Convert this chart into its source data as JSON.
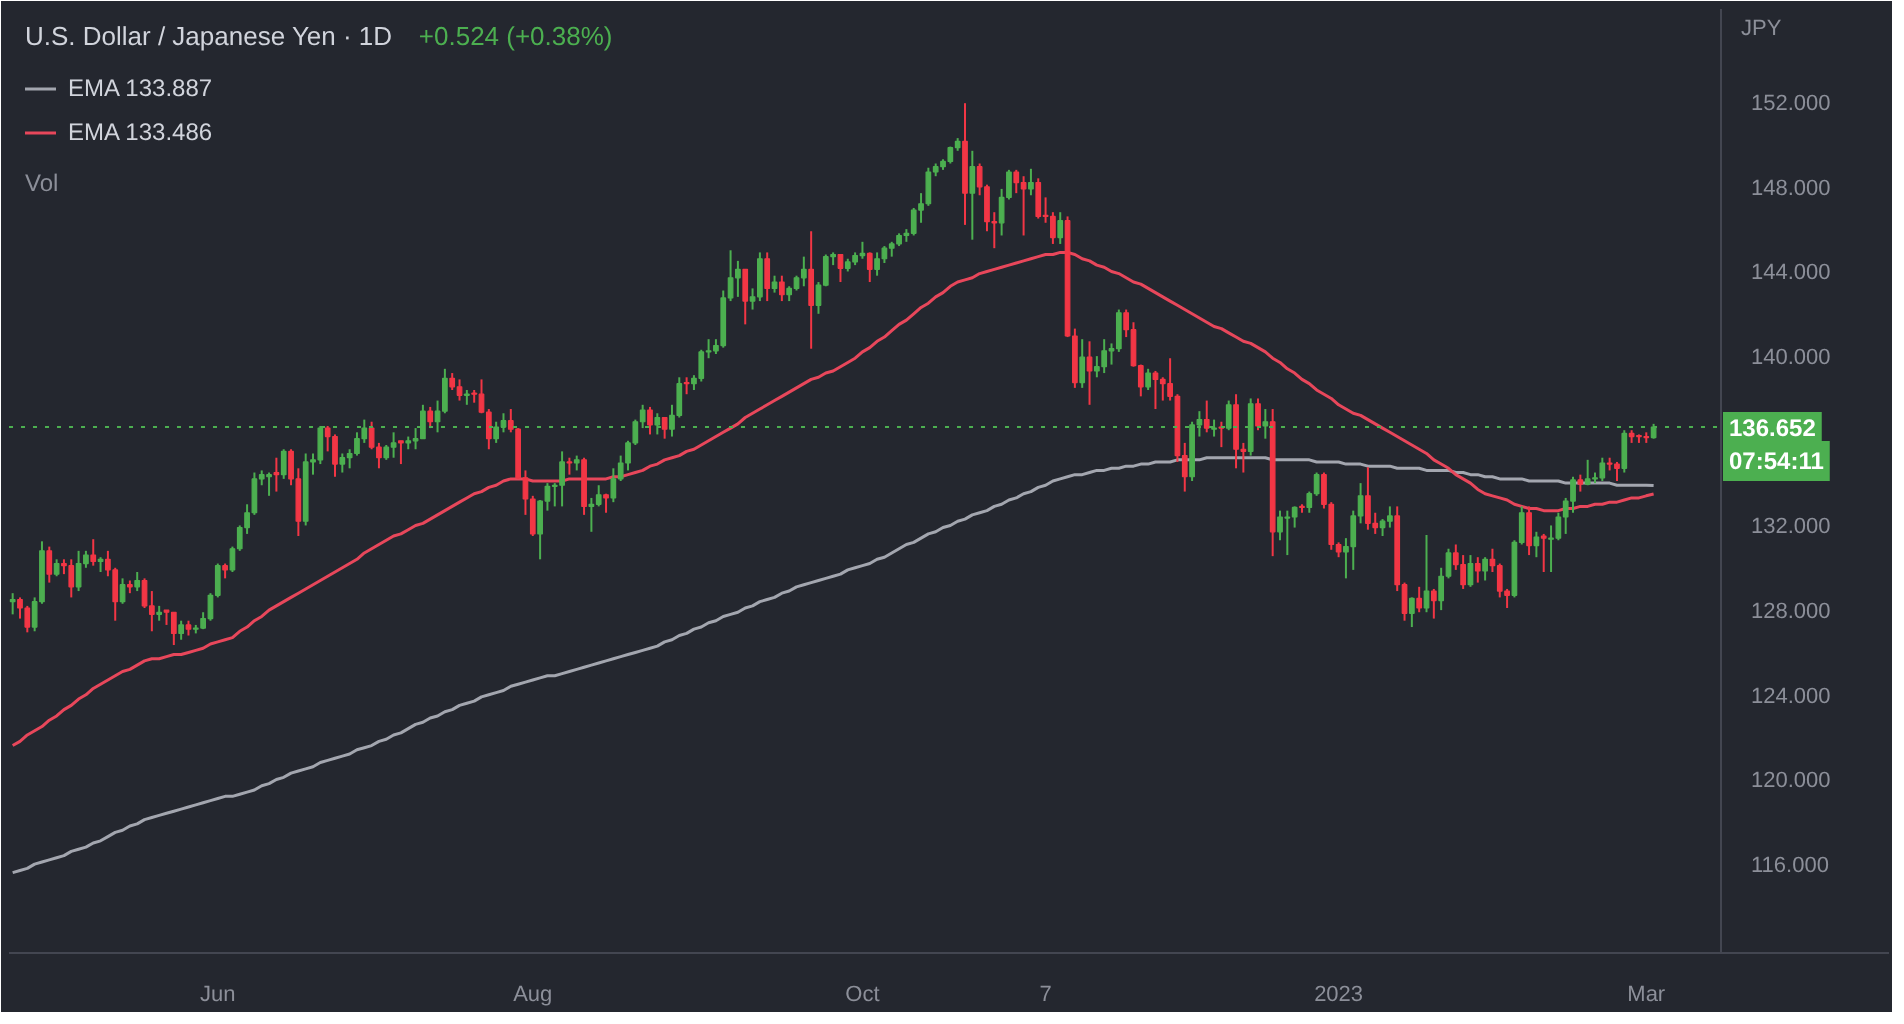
{
  "chart_data": {
    "type": "candlestick",
    "title": "U.S. Dollar / Japanese Yen · 1D",
    "ylabel": "JPY",
    "annotations": [
      "+0.524 (+0.38%)",
      "Vol",
      "07:54:11"
    ],
    "legend": "top left",
    "categories": [
      null,
      null,
      null,
      null,
      null,
      null,
      null,
      null,
      null,
      null,
      null,
      null,
      null,
      null,
      null,
      null,
      null,
      null,
      null,
      null,
      null,
      null,
      null,
      null,
      null,
      null,
      null,
      null,
      "Jun",
      null,
      null,
      null,
      null,
      null,
      null,
      null,
      null,
      null,
      null,
      null,
      null,
      null,
      null,
      null,
      null,
      null,
      null,
      null,
      null,
      null,
      null,
      null,
      null,
      null,
      null,
      null,
      null,
      null,
      null,
      null,
      null,
      null,
      null,
      null,
      null,
      null,
      null,
      null,
      null,
      null,
      null,
      "Aug",
      null,
      null,
      null,
      null,
      null,
      null,
      null,
      null,
      null,
      null,
      null,
      null,
      null,
      null,
      null,
      null,
      null,
      null,
      null,
      null,
      null,
      null,
      null,
      null,
      null,
      null,
      null,
      null,
      null,
      null,
      null,
      null,
      null,
      null,
      null,
      null,
      null,
      null,
      null,
      null,
      null,
      null,
      null,
      null,
      "Oct",
      null,
      null,
      null,
      null,
      null,
      null,
      null,
      null,
      null,
      null,
      null,
      null,
      null,
      null,
      null,
      null,
      null,
      null,
      null,
      null,
      null,
      null,
      null,
      null,
      "7",
      null,
      null,
      null,
      null,
      null,
      null,
      null,
      null,
      null,
      null,
      null,
      null,
      null,
      null,
      null,
      null,
      null,
      null,
      null,
      null,
      null,
      null,
      null,
      null,
      null,
      null,
      null,
      null,
      null,
      null,
      null,
      null,
      null,
      null,
      null,
      null,
      null,
      null,
      null,
      "2023",
      null,
      null,
      null,
      null,
      null,
      null,
      null,
      null,
      null,
      null,
      null,
      null,
      null,
      null,
      null,
      null,
      null,
      null,
      null,
      null,
      null,
      null,
      null,
      null,
      null,
      null,
      null,
      null,
      null,
      null,
      null,
      null,
      null,
      null,
      null,
      null,
      null,
      null,
      null,
      null,
      null,
      "Mar",
      null
    ],
    "ylim": [
      111.8,
      156.4
    ],
    "yticks": [
      {
        "value": 116,
        "label": "116.000"
      },
      {
        "value": 120,
        "label": "120.000"
      },
      {
        "value": 124,
        "label": "124.000"
      },
      {
        "value": 128,
        "label": "128.000"
      },
      {
        "value": 132,
        "label": "132.000"
      },
      {
        "value": 140,
        "label": "140.000"
      },
      {
        "value": 144,
        "label": "144.000"
      },
      {
        "value": 148,
        "label": "148.000"
      },
      {
        "value": 152,
        "label": "152.000"
      }
    ],
    "ref_lines": [
      {
        "axis": "y",
        "value": 136.652,
        "label": "136.652",
        "color": "#4caf50",
        "line_style": "dotted"
      }
    ],
    "ohlc": [
      [
        128.4,
        128.8,
        127.8,
        128.5
      ],
      [
        128.5,
        128.6,
        127.6,
        128.1
      ],
      [
        128.1,
        128.2,
        126.95,
        127.2
      ],
      [
        127.2,
        128.6,
        127.0,
        128.4
      ],
      [
        128.4,
        131.25,
        128.3,
        130.8
      ],
      [
        130.8,
        131.0,
        129.3,
        129.7
      ],
      [
        129.7,
        130.4,
        129.6,
        130.2
      ],
      [
        130.2,
        130.4,
        129.7,
        130.1
      ],
      [
        130.1,
        130.4,
        128.6,
        129.1
      ],
      [
        129.1,
        130.8,
        128.9,
        130.2
      ],
      [
        130.2,
        130.8,
        130.0,
        130.6
      ],
      [
        130.6,
        131.35,
        130.1,
        130.3
      ],
      [
        130.3,
        130.5,
        129.8,
        130.4
      ],
      [
        130.4,
        130.8,
        129.6,
        129.9
      ],
      [
        129.9,
        130.0,
        127.5,
        128.4
      ],
      [
        128.4,
        129.5,
        128.3,
        129.2
      ],
      [
        129.2,
        129.4,
        128.8,
        129.1
      ],
      [
        129.1,
        129.8,
        128.9,
        129.4
      ],
      [
        129.4,
        129.5,
        128.1,
        128.2
      ],
      [
        128.2,
        128.9,
        127.0,
        127.8
      ],
      [
        127.8,
        128.2,
        127.5,
        127.9
      ],
      [
        128.0,
        128.0,
        127.3,
        127.9
      ],
      [
        127.9,
        127.9,
        126.35,
        126.9
      ],
      [
        126.9,
        127.5,
        126.6,
        127.3
      ],
      [
        127.3,
        127.5,
        126.8,
        127.1
      ],
      [
        127.1,
        127.3,
        126.9,
        127.15
      ],
      [
        127.15,
        127.9,
        127.1,
        127.6
      ],
      [
        127.6,
        128.8,
        127.5,
        128.7
      ],
      [
        128.7,
        130.2,
        128.6,
        130.1
      ],
      [
        130.1,
        130.2,
        129.5,
        129.9
      ],
      [
        129.9,
        131.0,
        129.8,
        130.9
      ],
      [
        130.9,
        132.0,
        130.8,
        131.9
      ],
      [
        131.9,
        133.0,
        131.6,
        132.6
      ],
      [
        132.6,
        134.5,
        132.5,
        134.2
      ],
      [
        134.2,
        134.6,
        133.9,
        134.4
      ],
      [
        134.3,
        134.5,
        133.4,
        134.4
      ],
      [
        134.5,
        135.2,
        133.6,
        134.4
      ],
      [
        134.4,
        135.6,
        134.2,
        135.5
      ],
      [
        135.5,
        135.6,
        133.9,
        134.2
      ],
      [
        134.2,
        134.7,
        131.5,
        132.2
      ],
      [
        132.2,
        135.4,
        132.0,
        135.0
      ],
      [
        135.0,
        135.4,
        134.4,
        135.1
      ],
      [
        135.1,
        136.7,
        134.9,
        136.6
      ],
      [
        136.6,
        136.7,
        135.5,
        136.2
      ],
      [
        136.2,
        136.3,
        134.3,
        134.9
      ],
      [
        134.9,
        135.4,
        134.5,
        135.2
      ],
      [
        135.2,
        135.6,
        134.7,
        135.4
      ],
      [
        135.4,
        136.4,
        135.3,
        136.1
      ],
      [
        136.1,
        137.0,
        135.9,
        136.6
      ],
      [
        136.6,
        136.9,
        135.6,
        135.7
      ],
      [
        135.7,
        135.9,
        134.7,
        135.2
      ],
      [
        135.2,
        135.8,
        135.1,
        135.7
      ],
      [
        135.7,
        136.4,
        135.2,
        135.9
      ],
      [
        136.0,
        136.0,
        134.9,
        135.9
      ],
      [
        135.9,
        136.2,
        135.6,
        136.0
      ],
      [
        136.0,
        136.6,
        135.6,
        136.1
      ],
      [
        136.1,
        137.7,
        136.1,
        137.4
      ],
      [
        137.4,
        137.6,
        136.6,
        136.9
      ],
      [
        136.9,
        137.9,
        136.4,
        137.4
      ],
      [
        137.4,
        139.4,
        137.3,
        138.95
      ],
      [
        138.95,
        139.2,
        138.4,
        138.55
      ],
      [
        138.55,
        138.9,
        137.9,
        138.15
      ],
      [
        138.15,
        138.4,
        137.7,
        138.2
      ],
      [
        138.25,
        138.4,
        137.8,
        138.2
      ],
      [
        138.2,
        138.9,
        137.3,
        137.35
      ],
      [
        137.35,
        137.5,
        135.6,
        136.1
      ],
      [
        136.1,
        136.9,
        135.9,
        136.65
      ],
      [
        136.65,
        137.3,
        136.4,
        136.95
      ],
      [
        136.95,
        137.5,
        136.4,
        136.55
      ],
      [
        136.55,
        136.6,
        134.2,
        134.25
      ],
      [
        134.25,
        134.6,
        132.5,
        133.25
      ],
      [
        133.25,
        133.4,
        131.5,
        131.6
      ],
      [
        131.6,
        133.2,
        130.4,
        133.15
      ],
      [
        133.15,
        134.0,
        132.7,
        133.85
      ],
      [
        133.85,
        134.0,
        132.9,
        133.9
      ],
      [
        133.9,
        135.5,
        132.9,
        135.0
      ],
      [
        135.0,
        135.2,
        134.4,
        134.95
      ],
      [
        134.95,
        135.3,
        134.6,
        135.1
      ],
      [
        135.1,
        135.2,
        132.5,
        132.9
      ],
      [
        132.9,
        133.3,
        131.7,
        133.0
      ],
      [
        133.0,
        133.9,
        132.9,
        133.45
      ],
      [
        133.45,
        133.5,
        132.6,
        133.3
      ],
      [
        133.3,
        134.7,
        133.1,
        134.2
      ],
      [
        134.2,
        135.3,
        134.1,
        134.95
      ],
      [
        134.95,
        136.0,
        134.6,
        135.9
      ],
      [
        135.9,
        137.0,
        135.8,
        136.9
      ],
      [
        136.9,
        137.7,
        136.6,
        137.45
      ],
      [
        137.45,
        137.6,
        136.3,
        136.75
      ],
      [
        136.75,
        137.3,
        136.3,
        137.1
      ],
      [
        137.1,
        137.1,
        136.1,
        136.55
      ],
      [
        136.55,
        137.7,
        136.2,
        137.2
      ],
      [
        137.2,
        139.0,
        137.1,
        138.7
      ],
      [
        138.75,
        139.0,
        138.2,
        138.7
      ],
      [
        138.7,
        139.1,
        138.4,
        138.95
      ],
      [
        138.95,
        140.3,
        138.8,
        140.2
      ],
      [
        140.2,
        140.8,
        139.9,
        140.25
      ],
      [
        140.25,
        140.8,
        140.1,
        140.5
      ],
      [
        140.5,
        143.1,
        140.4,
        142.75
      ],
      [
        142.75,
        145.0,
        142.6,
        143.7
      ],
      [
        143.7,
        144.5,
        142.8,
        144.1
      ],
      [
        144.1,
        144.1,
        141.5,
        142.6
      ],
      [
        142.6,
        143.2,
        142.2,
        142.8
      ],
      [
        142.8,
        144.9,
        142.6,
        144.6
      ],
      [
        144.6,
        144.9,
        142.6,
        143.2
      ],
      [
        143.2,
        143.8,
        143.0,
        143.5
      ],
      [
        143.5,
        143.8,
        142.6,
        142.9
      ],
      [
        142.9,
        143.3,
        142.6,
        143.2
      ],
      [
        143.2,
        143.8,
        143.1,
        143.7
      ],
      [
        143.7,
        144.7,
        143.3,
        144.1
      ],
      [
        144.1,
        145.9,
        140.35,
        142.4
      ],
      [
        142.4,
        143.5,
        142.0,
        143.35
      ],
      [
        143.35,
        144.8,
        143.3,
        144.7
      ],
      [
        144.7,
        144.9,
        144.3,
        144.8
      ],
      [
        144.8,
        144.8,
        143.5,
        144.15
      ],
      [
        144.15,
        144.6,
        144.0,
        144.45
      ],
      [
        144.45,
        144.9,
        144.3,
        144.75
      ],
      [
        144.75,
        145.4,
        144.6,
        144.85
      ],
      [
        144.85,
        144.9,
        143.5,
        144.1
      ],
      [
        144.1,
        144.9,
        143.8,
        144.6
      ],
      [
        144.6,
        145.2,
        144.4,
        145.1
      ],
      [
        145.1,
        145.4,
        144.7,
        145.3
      ],
      [
        145.3,
        145.8,
        145.2,
        145.7
      ],
      [
        145.7,
        146.0,
        145.4,
        145.8
      ],
      [
        145.8,
        147.0,
        145.7,
        146.9
      ],
      [
        146.9,
        147.7,
        146.3,
        147.2
      ],
      [
        147.2,
        148.9,
        147.1,
        148.7
      ],
      [
        148.7,
        149.1,
        148.5,
        148.95
      ],
      [
        148.95,
        149.3,
        148.8,
        149.2
      ],
      [
        149.2,
        149.9,
        149.1,
        149.85
      ],
      [
        149.85,
        150.3,
        149.7,
        150.15
      ],
      [
        150.15,
        151.95,
        146.2,
        147.7
      ],
      [
        147.7,
        149.7,
        145.5,
        148.95
      ],
      [
        148.95,
        149.1,
        147.6,
        148.0
      ],
      [
        148.0,
        148.1,
        145.9,
        146.35
      ],
      [
        146.35,
        146.8,
        145.1,
        146.3
      ],
      [
        146.3,
        147.9,
        145.7,
        147.5
      ],
      [
        147.5,
        148.8,
        147.4,
        148.7
      ],
      [
        148.7,
        148.8,
        147.7,
        148.2
      ],
      [
        148.2,
        148.5,
        145.7,
        147.9
      ],
      [
        147.9,
        148.85,
        147.6,
        148.2
      ],
      [
        148.2,
        148.4,
        146.5,
        146.6
      ],
      [
        146.65,
        147.5,
        146.3,
        146.6
      ],
      [
        146.6,
        146.8,
        145.3,
        145.6
      ],
      [
        145.6,
        146.8,
        145.3,
        146.4
      ],
      [
        146.4,
        146.6,
        140.9,
        140.95
      ],
      [
        140.95,
        141.3,
        138.5,
        138.75
      ],
      [
        138.75,
        140.8,
        138.5,
        139.95
      ],
      [
        139.95,
        140.7,
        137.7,
        139.3
      ],
      [
        139.3,
        140.0,
        139.0,
        139.5
      ],
      [
        139.5,
        140.8,
        139.2,
        140.25
      ],
      [
        140.25,
        140.6,
        139.6,
        140.35
      ],
      [
        140.35,
        142.2,
        140.2,
        142.05
      ],
      [
        142.05,
        142.2,
        140.9,
        141.25
      ],
      [
        141.25,
        141.6,
        139.5,
        139.55
      ],
      [
        139.55,
        139.6,
        138.1,
        138.55
      ],
      [
        138.55,
        139.4,
        138.4,
        139.2
      ],
      [
        139.2,
        139.3,
        137.5,
        138.9
      ],
      [
        138.9,
        139.0,
        137.9,
        138.7
      ],
      [
        138.7,
        139.9,
        137.9,
        138.1
      ],
      [
        138.1,
        138.2,
        135.0,
        135.3
      ],
      [
        135.3,
        135.9,
        133.6,
        134.3
      ],
      [
        134.3,
        136.9,
        134.1,
        136.75
      ],
      [
        136.75,
        137.4,
        136.2,
        137.0
      ],
      [
        137.0,
        137.9,
        136.4,
        136.6
      ],
      [
        136.55,
        137.0,
        136.2,
        136.6
      ],
      [
        136.65,
        136.9,
        135.7,
        136.6
      ],
      [
        136.6,
        137.9,
        136.5,
        137.7
      ],
      [
        137.7,
        138.2,
        134.7,
        135.6
      ],
      [
        135.6,
        135.9,
        134.5,
        135.5
      ],
      [
        135.5,
        138.0,
        135.3,
        137.75
      ],
      [
        137.75,
        138.0,
        136.5,
        136.7
      ],
      [
        136.7,
        137.5,
        136.1,
        136.9
      ],
      [
        136.9,
        137.5,
        130.55,
        131.7
      ],
      [
        131.7,
        132.7,
        131.3,
        132.4
      ],
      [
        132.35,
        132.7,
        130.6,
        132.4
      ],
      [
        132.4,
        132.9,
        131.9,
        132.85
      ],
      [
        132.9,
        133.0,
        132.6,
        132.85
      ],
      [
        132.85,
        133.6,
        132.6,
        133.5
      ],
      [
        133.5,
        134.5,
        133.4,
        134.4
      ],
      [
        134.4,
        134.5,
        132.8,
        133.0
      ],
      [
        133.0,
        133.1,
        130.85,
        131.1
      ],
      [
        131.1,
        131.2,
        130.5,
        130.75
      ],
      [
        130.75,
        131.4,
        129.5,
        131.0
      ],
      [
        131.0,
        132.7,
        129.9,
        132.45
      ],
      [
        132.45,
        134.0,
        132.1,
        133.4
      ],
      [
        133.4,
        134.75,
        131.8,
        132.1
      ],
      [
        132.1,
        132.6,
        131.6,
        131.9
      ],
      [
        131.9,
        132.3,
        131.5,
        132.2
      ],
      [
        132.2,
        132.9,
        131.9,
        132.45
      ],
      [
        132.45,
        132.9,
        128.9,
        129.2
      ],
      [
        129.2,
        129.3,
        127.5,
        127.85
      ],
      [
        127.85,
        128.6,
        127.2,
        128.55
      ],
      [
        128.55,
        129.1,
        127.9,
        128.1
      ],
      [
        128.1,
        131.55,
        127.9,
        128.9
      ],
      [
        128.9,
        129.0,
        127.6,
        128.45
      ],
      [
        128.45,
        130.0,
        128.0,
        129.6
      ],
      [
        129.6,
        130.9,
        129.5,
        130.7
      ],
      [
        130.7,
        131.1,
        129.9,
        130.15
      ],
      [
        130.15,
        130.6,
        129.0,
        129.2
      ],
      [
        129.2,
        130.6,
        129.1,
        130.2
      ],
      [
        130.2,
        130.5,
        129.3,
        129.85
      ],
      [
        129.85,
        130.5,
        129.4,
        130.4
      ],
      [
        130.4,
        130.9,
        129.8,
        130.1
      ],
      [
        130.1,
        130.2,
        128.6,
        128.9
      ],
      [
        128.9,
        129.0,
        128.1,
        128.7
      ],
      [
        128.7,
        131.3,
        128.6,
        131.2
      ],
      [
        131.2,
        132.9,
        131.1,
        132.6
      ],
      [
        132.6,
        132.9,
        130.6,
        131.05
      ],
      [
        131.05,
        131.7,
        130.5,
        131.45
      ],
      [
        131.5,
        131.6,
        129.8,
        131.4
      ],
      [
        131.35,
        132.0,
        129.8,
        131.4
      ],
      [
        131.4,
        132.6,
        131.3,
        132.4
      ],
      [
        132.4,
        133.3,
        131.6,
        133.15
      ],
      [
        133.15,
        134.3,
        132.6,
        134.15
      ],
      [
        134.15,
        134.4,
        133.6,
        133.95
      ],
      [
        133.95,
        135.1,
        133.9,
        134.2
      ],
      [
        134.2,
        134.5,
        134.0,
        134.25
      ],
      [
        134.25,
        135.2,
        134.1,
        134.95
      ],
      [
        134.95,
        135.2,
        134.6,
        134.9
      ],
      [
        134.9,
        135.0,
        134.1,
        134.7
      ],
      [
        134.7,
        136.5,
        134.5,
        136.35
      ],
      [
        136.35,
        136.5,
        135.9,
        136.2
      ],
      [
        136.25,
        136.3,
        135.9,
        136.2
      ],
      [
        136.2,
        136.4,
        135.9,
        136.15
      ],
      [
        136.15,
        136.8,
        136.1,
        136.652
      ]
    ],
    "colors": [
      "#4caf50",
      "#f23645",
      "#f23645",
      "#4caf50",
      "#4caf50",
      "#f23645",
      "#4caf50",
      "#f23645",
      "#f23645",
      "#4caf50",
      "#4caf50",
      "#f23645",
      "#4caf50",
      "#f23645",
      "#f23645",
      "#4caf50",
      "#f23645",
      "#4caf50",
      "#f23645",
      "#f23645",
      "#4caf50",
      "#f23645",
      "#f23645",
      "#4caf50",
      "#f23645",
      "#4caf50",
      "#4caf50",
      "#4caf50",
      "#4caf50",
      "#f23645",
      "#4caf50",
      "#4caf50",
      "#4caf50",
      "#4caf50",
      "#4caf50",
      "#4caf50",
      "#f23645",
      "#4caf50",
      "#f23645",
      "#f23645",
      "#4caf50",
      "#4caf50",
      "#4caf50",
      "#f23645",
      "#f23645",
      "#4caf50",
      "#4caf50",
      "#4caf50",
      "#4caf50",
      "#f23645",
      "#f23645",
      "#4caf50",
      "#4caf50",
      "#f23645",
      "#4caf50",
      "#4caf50",
      "#4caf50",
      "#f23645",
      "#4caf50",
      "#4caf50",
      "#f23645",
      "#f23645",
      "#4caf50",
      "#f23645",
      "#f23645",
      "#f23645",
      "#4caf50",
      "#4caf50",
      "#f23645",
      "#f23645",
      "#f23645",
      "#f23645",
      "#4caf50",
      "#4caf50",
      "#4caf50",
      "#4caf50",
      "#f23645",
      "#4caf50",
      "#f23645",
      "#4caf50",
      "#4caf50",
      "#f23645",
      "#4caf50",
      "#4caf50",
      "#4caf50",
      "#4caf50",
      "#4caf50",
      "#f23645",
      "#4caf50",
      "#f23645",
      "#4caf50",
      "#4caf50",
      "#f23645",
      "#4caf50",
      "#4caf50",
      "#4caf50",
      "#4caf50",
      "#4caf50",
      "#4caf50",
      "#4caf50",
      "#f23645",
      "#4caf50",
      "#4caf50",
      "#f23645",
      "#4caf50",
      "#f23645",
      "#4caf50",
      "#4caf50",
      "#4caf50",
      "#f23645",
      "#4caf50",
      "#4caf50",
      "#4caf50",
      "#f23645",
      "#4caf50",
      "#4caf50",
      "#4caf50",
      "#f23645",
      "#4caf50",
      "#4caf50",
      "#4caf50",
      "#4caf50",
      "#4caf50",
      "#4caf50",
      "#4caf50",
      "#4caf50",
      "#4caf50",
      "#4caf50",
      "#4caf50",
      "#4caf50",
      "#f23645",
      "#4caf50",
      "#f23645",
      "#f23645",
      "#f23645",
      "#4caf50",
      "#4caf50",
      "#f23645",
      "#f23645",
      "#4caf50",
      "#f23645",
      "#f23645",
      "#f23645",
      "#4caf50",
      "#f23645",
      "#f23645",
      "#4caf50",
      "#f23645",
      "#4caf50",
      "#4caf50",
      "#4caf50",
      "#4caf50",
      "#f23645",
      "#f23645",
      "#f23645",
      "#4caf50",
      "#f23645",
      "#f23645",
      "#f23645",
      "#f23645",
      "#f23645",
      "#4caf50",
      "#4caf50",
      "#f23645",
      "#4caf50",
      "#f23645",
      "#4caf50",
      "#f23645",
      "#f23645",
      "#4caf50",
      "#f23645",
      "#4caf50",
      "#f23645",
      "#4caf50",
      "#4caf50",
      "#4caf50",
      "#f23645",
      "#4caf50",
      "#4caf50",
      "#f23645",
      "#f23645",
      "#f23645",
      "#4caf50",
      "#4caf50",
      "#4caf50",
      "#f23645",
      "#f23645",
      "#4caf50",
      "#4caf50",
      "#f23645",
      "#f23645",
      "#4caf50",
      "#f23645",
      "#4caf50",
      "#f23645",
      "#4caf50",
      "#4caf50",
      "#f23645",
      "#f23645",
      "#4caf50",
      "#f23645",
      "#4caf50",
      "#f23645",
      "#f23645",
      "#f23645",
      "#4caf50",
      "#4caf50",
      "#f23645",
      "#4caf50",
      "#f23645",
      "#4caf50",
      "#4caf50",
      "#4caf50",
      "#4caf50",
      "#f23645",
      "#4caf50",
      "#4caf50",
      "#4caf50",
      "#f23645",
      "#f23645",
      "#4caf50",
      "#f23645",
      "#f23645",
      "#f23645",
      "#4caf50"
    ],
    "series": [
      {
        "type": "line",
        "name": "EMA 133.887",
        "color": "#a3a6af",
        "values": [
          115.6,
          115.7,
          115.8,
          116.0,
          116.1,
          116.2,
          116.3,
          116.4,
          116.6,
          116.7,
          116.8,
          117.0,
          117.1,
          117.3,
          117.5,
          117.6,
          117.8,
          117.9,
          118.1,
          118.2,
          118.3,
          118.4,
          118.5,
          118.6,
          118.7,
          118.8,
          118.9,
          119.0,
          119.1,
          119.2,
          119.2,
          119.3,
          119.4,
          119.5,
          119.7,
          119.8,
          120.0,
          120.1,
          120.3,
          120.4,
          120.5,
          120.6,
          120.8,
          120.9,
          121.0,
          121.1,
          121.2,
          121.4,
          121.5,
          121.6,
          121.8,
          121.9,
          122.1,
          122.2,
          122.4,
          122.6,
          122.7,
          122.9,
          123.0,
          123.2,
          123.3,
          123.5,
          123.6,
          123.7,
          123.9,
          124.0,
          124.1,
          124.2,
          124.4,
          124.5,
          124.6,
          124.7,
          124.8,
          124.9,
          124.9,
          125.0,
          125.1,
          125.2,
          125.3,
          125.4,
          125.5,
          125.6,
          125.7,
          125.8,
          125.9,
          126.0,
          126.1,
          126.2,
          126.3,
          126.5,
          126.6,
          126.8,
          126.9,
          127.1,
          127.2,
          127.4,
          127.5,
          127.7,
          127.8,
          127.9,
          128.1,
          128.2,
          128.4,
          128.5,
          128.6,
          128.8,
          128.9,
          129.1,
          129.2,
          129.3,
          129.4,
          129.5,
          129.6,
          129.7,
          129.9,
          130.0,
          130.1,
          130.2,
          130.4,
          130.5,
          130.7,
          130.9,
          131.1,
          131.2,
          131.4,
          131.6,
          131.7,
          131.9,
          132.0,
          132.2,
          132.3,
          132.5,
          132.6,
          132.7,
          132.9,
          133.0,
          133.2,
          133.3,
          133.5,
          133.6,
          133.8,
          133.9,
          134.1,
          134.2,
          134.3,
          134.4,
          134.4,
          134.5,
          134.6,
          134.6,
          134.7,
          134.7,
          134.8,
          134.8,
          134.9,
          134.9,
          135.0,
          135.0,
          135.0,
          135.1,
          135.1,
          135.1,
          135.1,
          135.2,
          135.2,
          135.2,
          135.2,
          135.2,
          135.2,
          135.2,
          135.2,
          135.2,
          135.1,
          135.1,
          135.1,
          135.1,
          135.1,
          135.1,
          135.0,
          135.0,
          135.0,
          135.0,
          134.9,
          134.9,
          134.9,
          134.8,
          134.8,
          134.8,
          134.8,
          134.7,
          134.7,
          134.7,
          134.7,
          134.6,
          134.6,
          134.6,
          134.6,
          134.5,
          134.5,
          134.4,
          134.4,
          134.3,
          134.3,
          134.2,
          134.2,
          134.2,
          134.2,
          134.1,
          134.1,
          134.1,
          134.1,
          134.1,
          134.0,
          134.0,
          134.0,
          134.0,
          134.0,
          134.0,
          134.0,
          133.9,
          133.9,
          133.9,
          133.9,
          133.9,
          133.887
        ]
      },
      {
        "type": "line",
        "name": "EMA 133.486",
        "color": "#e8475b",
        "values": [
          121.6,
          121.8,
          122.1,
          122.3,
          122.5,
          122.8,
          123.0,
          123.3,
          123.5,
          123.8,
          124.0,
          124.3,
          124.5,
          124.7,
          124.9,
          125.1,
          125.2,
          125.4,
          125.6,
          125.7,
          125.7,
          125.8,
          125.9,
          125.9,
          126.0,
          126.1,
          126.2,
          126.4,
          126.5,
          126.6,
          126.7,
          127.0,
          127.2,
          127.5,
          127.7,
          128.0,
          128.2,
          128.4,
          128.6,
          128.8,
          129.0,
          129.2,
          129.4,
          129.6,
          129.8,
          130.0,
          130.2,
          130.4,
          130.7,
          130.9,
          131.1,
          131.3,
          131.5,
          131.6,
          131.8,
          132.0,
          132.1,
          132.3,
          132.5,
          132.7,
          132.9,
          133.1,
          133.3,
          133.5,
          133.6,
          133.8,
          133.9,
          134.1,
          134.2,
          134.2,
          134.2,
          134.1,
          134.1,
          134.1,
          134.1,
          134.1,
          134.2,
          134.2,
          134.2,
          134.2,
          134.2,
          134.2,
          134.3,
          134.3,
          134.4,
          134.5,
          134.6,
          134.8,
          134.9,
          135.1,
          135.2,
          135.3,
          135.5,
          135.6,
          135.8,
          136.0,
          136.2,
          136.4,
          136.6,
          136.8,
          137.1,
          137.3,
          137.5,
          137.7,
          137.9,
          138.1,
          138.3,
          138.5,
          138.7,
          138.9,
          139.0,
          139.2,
          139.3,
          139.5,
          139.7,
          139.9,
          140.2,
          140.4,
          140.7,
          140.9,
          141.2,
          141.5,
          141.7,
          142.0,
          142.3,
          142.5,
          142.8,
          143.0,
          143.3,
          143.5,
          143.6,
          143.7,
          143.9,
          144.0,
          144.1,
          144.2,
          144.3,
          144.4,
          144.5,
          144.6,
          144.7,
          144.8,
          144.8,
          144.9,
          144.9,
          144.8,
          144.6,
          144.5,
          144.3,
          144.2,
          144.0,
          143.9,
          143.7,
          143.5,
          143.4,
          143.2,
          143.0,
          142.8,
          142.6,
          142.4,
          142.2,
          142.0,
          141.8,
          141.6,
          141.4,
          141.3,
          141.1,
          140.9,
          140.7,
          140.6,
          140.4,
          140.2,
          139.9,
          139.7,
          139.4,
          139.2,
          138.9,
          138.7,
          138.4,
          138.2,
          138.0,
          137.7,
          137.5,
          137.3,
          137.2,
          137.0,
          136.8,
          136.6,
          136.4,
          136.2,
          136.0,
          135.8,
          135.6,
          135.4,
          135.1,
          134.9,
          134.7,
          134.4,
          134.2,
          134.0,
          133.7,
          133.5,
          133.4,
          133.3,
          133.2,
          133.0,
          132.9,
          132.8,
          132.8,
          132.7,
          132.7,
          132.7,
          132.8,
          132.8,
          132.9,
          132.9,
          133.0,
          133.0,
          133.1,
          133.1,
          133.2,
          133.3,
          133.3,
          133.4,
          133.486
        ]
      }
    ]
  }
}
